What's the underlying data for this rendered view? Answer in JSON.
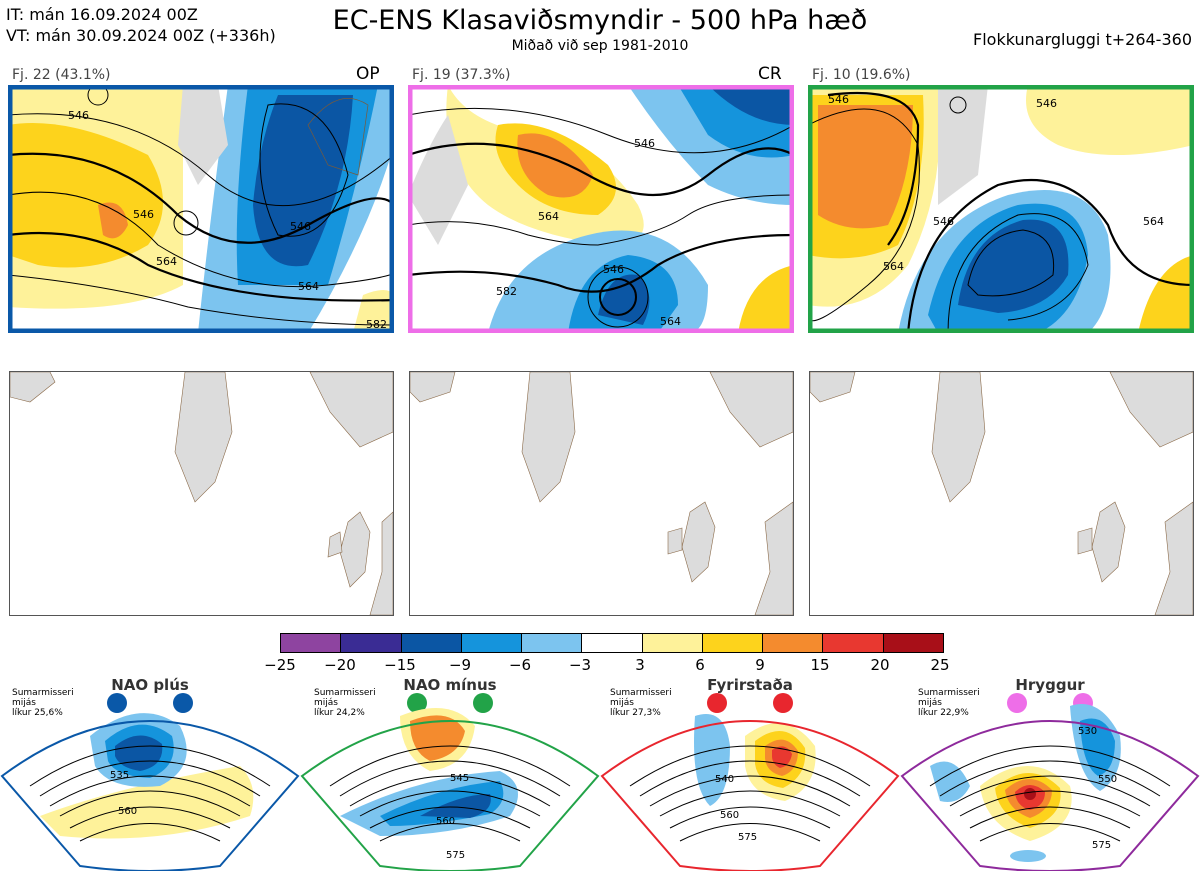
{
  "header": {
    "it_line": "IT: mán 16.09.2024 00Z",
    "vt_line": "VT: mán 30.09.2024 00Z  (+336h)",
    "title": "EC-ENS Klasaviðsmyndir - 500 hPa hæð",
    "subtitle": "Miðað við sep 1981-2010",
    "window": "Flokkunargluggi t+264-360"
  },
  "clusters": [
    {
      "label": "Fj. 22 (43.1%)",
      "tag": "OP",
      "frame_color": "#0a58a8",
      "contour_labels": [
        "546",
        "564",
        "546",
        "564",
        "582",
        "546",
        "528"
      ]
    },
    {
      "label": "Fj. 19 (37.3%)",
      "tag": "CR",
      "frame_color": "#ee6ee8",
      "contour_labels": [
        "546",
        "564",
        "546",
        "564",
        "582",
        "546",
        "582",
        "564"
      ]
    },
    {
      "label": "Fj. 10 (19.6%)",
      "tag": "",
      "frame_color": "#22a348",
      "contour_labels": [
        "546",
        "546",
        "564",
        "546",
        "546",
        "564",
        "582",
        "564"
      ]
    }
  ],
  "colorbar": {
    "ticks": [
      "−25",
      "−20",
      "−15",
      "−9",
      "−6",
      "−3",
      "3",
      "6",
      "9",
      "15",
      "20",
      "25"
    ],
    "colors": [
      "#8e44a0",
      "#3a2c94",
      "#0b56a4",
      "#1594dc",
      "#7cc4ef",
      "#ffffff",
      "#fef29a",
      "#fdd31c",
      "#f48b2e",
      "#e83830",
      "#a80f18"
    ]
  },
  "regimes": [
    {
      "name": "NAO plús",
      "color": "#0a58a8",
      "season": "Sumarmisseri",
      "note": "mijás",
      "likelihood": "líkur 25,6%",
      "labels": [
        "535",
        "560"
      ]
    },
    {
      "name": "NAO mínus",
      "color": "#22a348",
      "season": "Sumarmisseri",
      "note": "mijás",
      "likelihood": "líkur 24,2%",
      "labels": [
        "545",
        "560",
        "575"
      ]
    },
    {
      "name": "Fyrirstaða",
      "color": "#e8262e",
      "season": "Sumarmisseri",
      "note": "mijás",
      "likelihood": "líkur 27,3%",
      "labels": [
        "540",
        "560",
        "575"
      ]
    },
    {
      "name": "Hryggur",
      "color": "#ee6ee8",
      "season": "Sumarmisseri",
      "note": "mijás",
      "likelihood": "líkur 22,9%",
      "labels": [
        "530",
        "550",
        "575"
      ]
    }
  ]
}
